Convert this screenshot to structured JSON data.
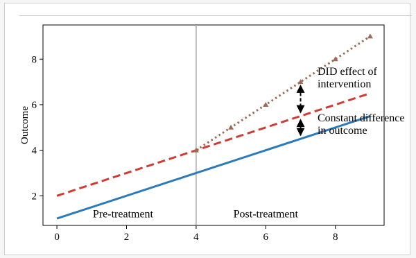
{
  "chart_data": {
    "type": "line",
    "xlim": [
      -0.4,
      9.4
    ],
    "ylim": [
      0.7,
      9.5
    ],
    "xticks": [
      0,
      2,
      4,
      6,
      8
    ],
    "yticks": [
      2,
      4,
      6,
      8
    ],
    "xtick_labels": [
      "0",
      "2",
      "4",
      "6",
      "8"
    ],
    "ytick_labels": [
      "2",
      "4",
      "6",
      "8"
    ],
    "xlabel": "",
    "ylabel": "Outcome",
    "grid": false,
    "treatment_time": 4,
    "colors": {
      "control": "#2b7bba",
      "counterfactual": "#d03b33",
      "treated": "#9b6b55",
      "divider": "#aaaaaa"
    },
    "series": [
      {
        "x": [
          0,
          9
        ],
        "y": [
          1.0,
          5.5
        ],
        "style": "solid"
      },
      {
        "x": [
          0,
          9
        ],
        "y": [
          2.0,
          6.5
        ],
        "style": "dashed"
      },
      {
        "x": [
          4,
          5,
          6,
          7,
          8,
          9
        ],
        "y": [
          4.0,
          5.0,
          6.0,
          7.0,
          8.0,
          9.0
        ],
        "style": "dotted",
        "marker": "triangle"
      }
    ],
    "annotations": [
      {
        "text_lines": [
          "DID effect of",
          "intervention"
        ],
        "arrow_x": 7,
        "arrow_y": [
          5.5,
          7.0
        ]
      },
      {
        "text_lines": [
          "Constant difference",
          "in outcome"
        ],
        "arrow_x": 7,
        "arrow_y": [
          4.5,
          5.5
        ]
      }
    ],
    "region_labels": [
      {
        "text": "Pre-treatment",
        "x": 1.9,
        "y": 1.05
      },
      {
        "text": "Post-treatment",
        "x": 6.0,
        "y": 1.05
      }
    ]
  }
}
